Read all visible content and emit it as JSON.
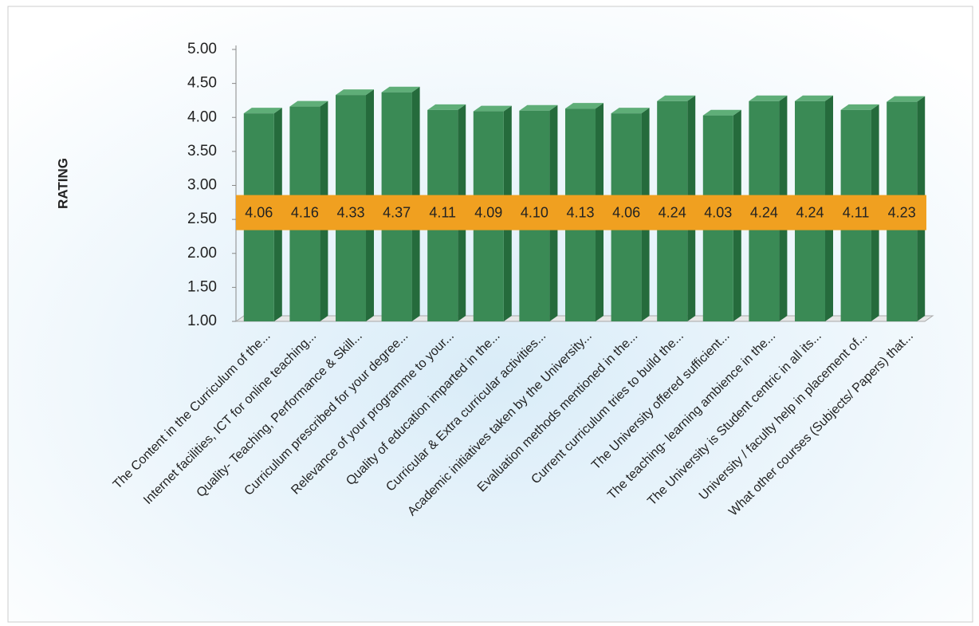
{
  "chart_data": {
    "type": "bar",
    "y_label": "RATING",
    "categories": [
      "The Content in the Curriculum of the...",
      "Internet facilities, ICT for online teaching...",
      "Quality- Teaching, Performance & Skill...",
      "Curriculum prescribed for your degree...",
      "Relevance of your programme to your...",
      "Quality of education imparted in the...",
      "Curricular & Extra curricular activities...",
      "Academic initiatives taken by the University...",
      "Evaluation methods mentioned in the...",
      "Current curriculum tries to build the...",
      "The University offered sufficient...",
      "The teaching- learning ambience in the...",
      "The University is Student centric in all its...",
      "University / faculty help in placement of...",
      "What other courses (Subjects/ Papers)  that..."
    ],
    "values": [
      4.06,
      4.16,
      4.33,
      4.37,
      4.11,
      4.09,
      4.1,
      4.13,
      4.06,
      4.24,
      4.03,
      4.24,
      4.24,
      4.11,
      4.23
    ],
    "value_labels": [
      "4.06",
      "4.16",
      "4.33",
      "4.37",
      "4.11",
      "4.09",
      "4.10",
      "4.13",
      "4.06",
      "4.24",
      "4.03",
      "4.24",
      "4.24",
      "4.11",
      "4.23"
    ],
    "color": "#3a8a55",
    "label_color": "#f0a020",
    "ylim": [
      1,
      5
    ],
    "yticks": [
      {
        "value": 1,
        "label": "1.00"
      },
      {
        "value": 1.5,
        "label": "1.50"
      },
      {
        "value": 2,
        "label": "2.00"
      },
      {
        "value": 2.5,
        "label": "2.50"
      },
      {
        "value": 3,
        "label": "3.00"
      },
      {
        "value": 3.5,
        "label": "3.50"
      },
      {
        "value": 4,
        "label": "4.00"
      },
      {
        "value": 4.5,
        "label": "4.50"
      },
      {
        "value": 5,
        "label": "5.00"
      }
    ],
    "grid": false
  }
}
